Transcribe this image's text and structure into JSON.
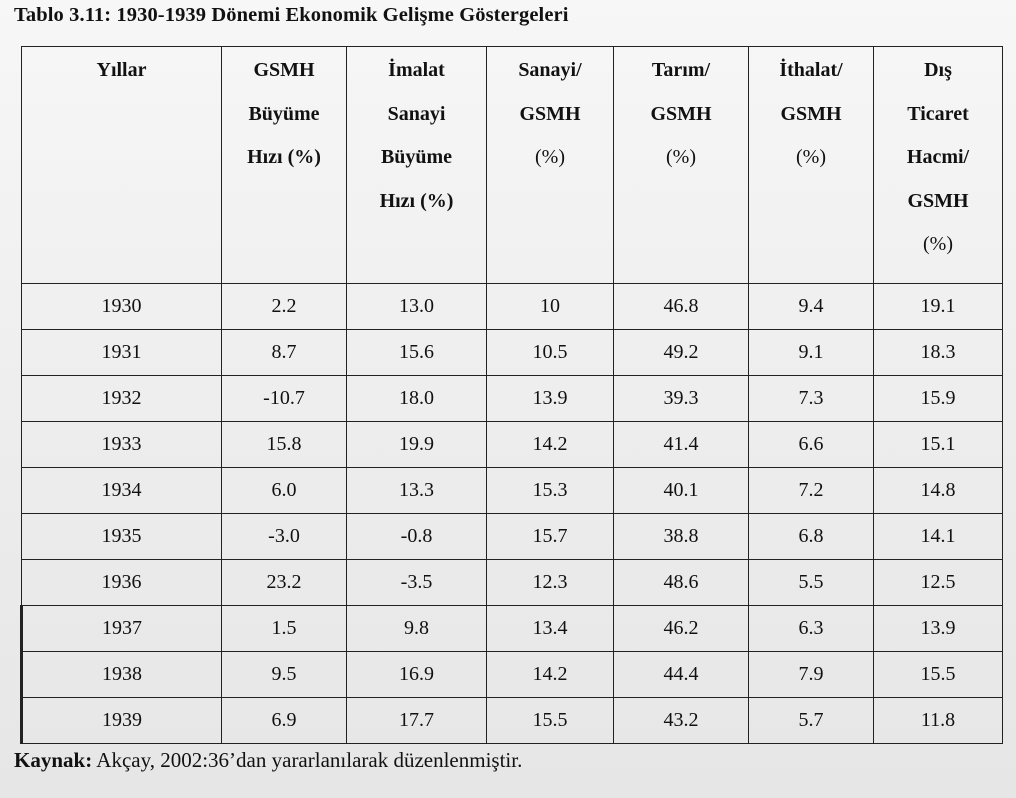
{
  "caption": "Tablo 3.11: 1930-1939 Dönemi Ekonomik Gelişme Göstergeleri",
  "headers": {
    "year": [
      "Yıllar"
    ],
    "gsmh_growth": [
      "GSMH",
      "Büyüme",
      "Hızı (%)"
    ],
    "manufacturing_growth": [
      "İmalat",
      "Sanayi",
      "Büyüme",
      "Hızı (%)"
    ],
    "industry_gsmh": [
      "Sanayi/",
      "GSMH",
      "(%)"
    ],
    "agriculture_gsmh": [
      "Tarım/",
      "GSMH",
      "(%)"
    ],
    "import_gsmh": [
      "İthalat/",
      "GSMH",
      "(%)"
    ],
    "trade_volume_gsmh": [
      "Dış",
      "Ticaret",
      "Hacmi/",
      "GSMH",
      "(%)"
    ]
  },
  "rows": [
    [
      "1930",
      "2.2",
      "13.0",
      "10",
      "46.8",
      "9.4",
      "19.1"
    ],
    [
      "1931",
      "8.7",
      "15.6",
      "10.5",
      "49.2",
      "9.1",
      "18.3"
    ],
    [
      "1932",
      "-10.7",
      "18.0",
      "13.9",
      "39.3",
      "7.3",
      "15.9"
    ],
    [
      "1933",
      "15.8",
      "19.9",
      "14.2",
      "41.4",
      "6.6",
      "15.1"
    ],
    [
      "1934",
      "6.0",
      "13.3",
      "15.3",
      "40.1",
      "7.2",
      "14.8"
    ],
    [
      "1935",
      "-3.0",
      "-0.8",
      "15.7",
      "38.8",
      "6.8",
      "14.1"
    ],
    [
      "1936",
      "23.2",
      "-3.5",
      "12.3",
      "48.6",
      "5.5",
      "12.5"
    ],
    [
      "1937",
      "1.5",
      "9.8",
      "13.4",
      "46.2",
      "6.3",
      "13.9"
    ],
    [
      "1938",
      "9.5",
      "16.9",
      "14.2",
      "44.4",
      "7.9",
      "15.5"
    ],
    [
      "1939",
      "6.9",
      "17.7",
      "15.5",
      "43.2",
      "5.7",
      "11.8"
    ]
  ],
  "source": {
    "label": "Kaynak:",
    "text": " Akçay, 2002:36’dan yararlanılarak düzenlenmiştir."
  }
}
